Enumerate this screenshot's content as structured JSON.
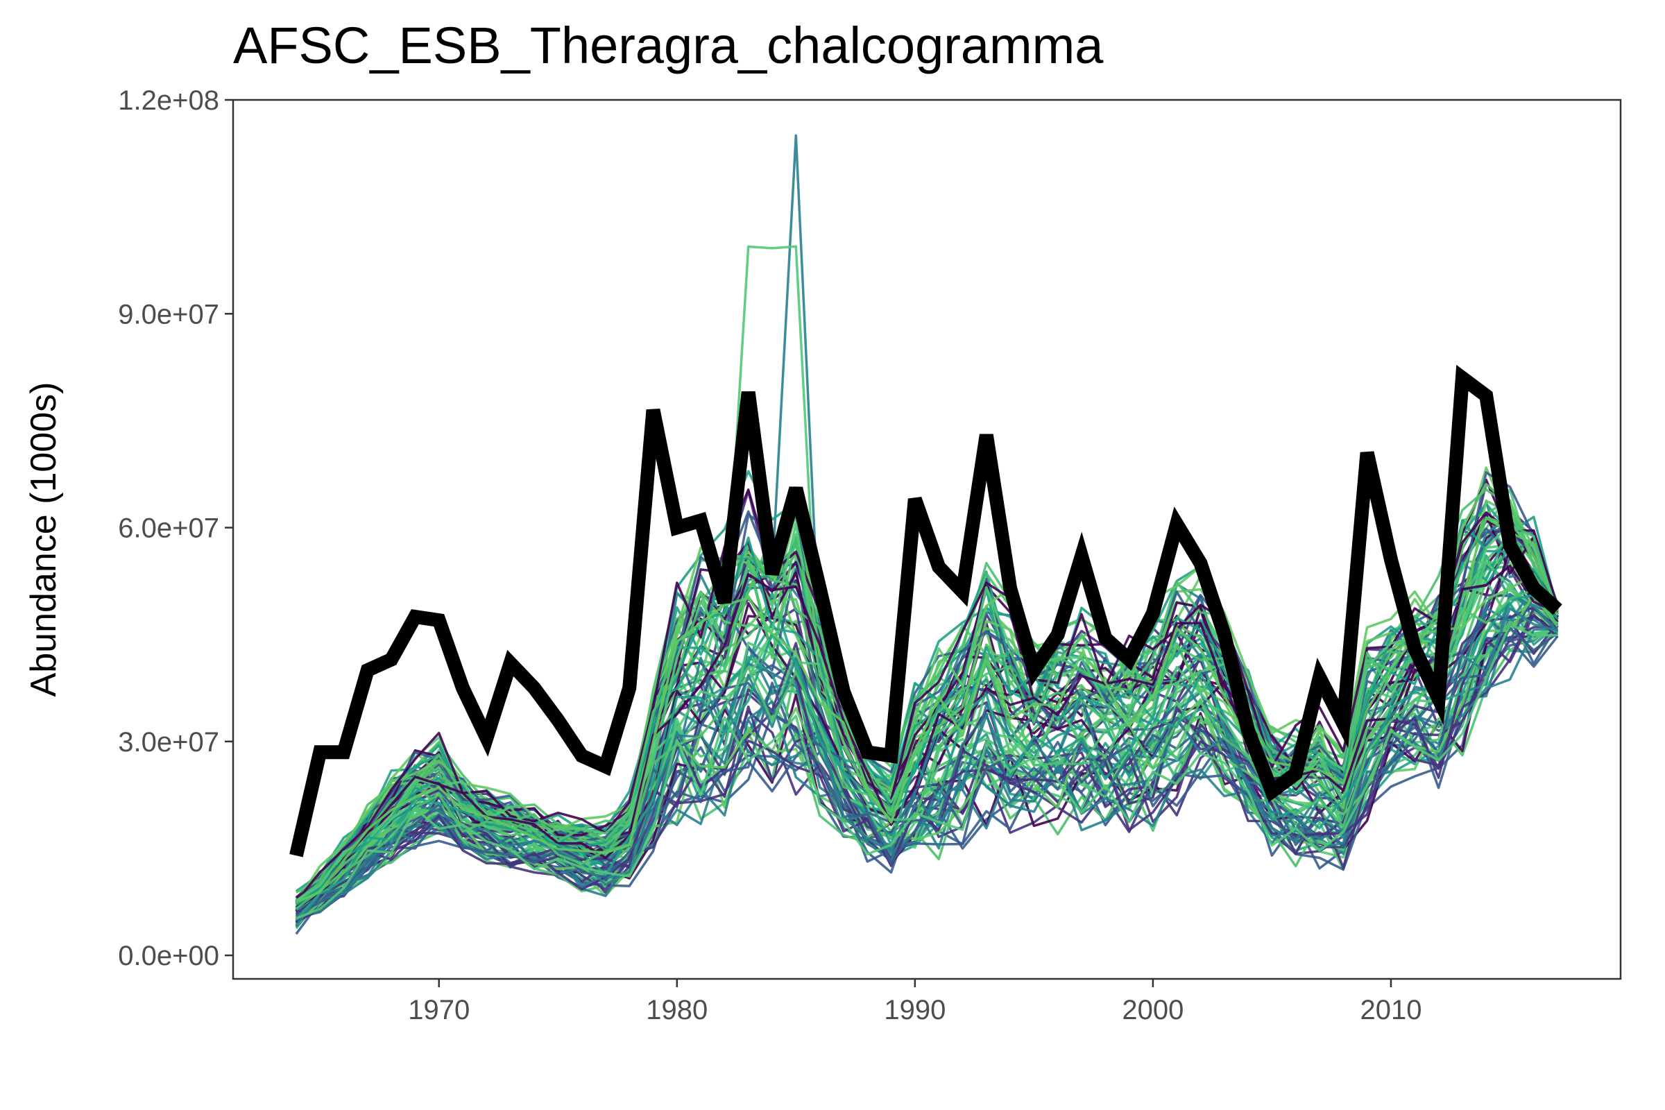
{
  "chart_data": {
    "type": "line",
    "title": "AFSC_ESB_Theragra_chalcogramma",
    "xlabel": "",
    "ylabel": "Abundance (1000s)",
    "xlim": [
      1964,
      2017
    ],
    "ylim": [
      0,
      120000000
    ],
    "x_ticks": [
      1970,
      1980,
      1990,
      2000,
      2010
    ],
    "x_tick_labels": [
      "1970",
      "1980",
      "1990",
      "2000",
      "2010"
    ],
    "y_ticks": [
      0,
      30000000,
      60000000,
      90000000,
      120000000
    ],
    "y_tick_labels": [
      "0.0e+00",
      "3.0e+07",
      "6.0e+07",
      "9.0e+07",
      "1.2e+08"
    ],
    "grid": false,
    "legend": "none",
    "x": [
      1964,
      1965,
      1966,
      1967,
      1968,
      1969,
      1970,
      1971,
      1972,
      1973,
      1974,
      1975,
      1976,
      1977,
      1978,
      1979,
      1980,
      1981,
      1982,
      1983,
      1984,
      1985,
      1986,
      1987,
      1988,
      1989,
      1990,
      1991,
      1992,
      1993,
      1994,
      1995,
      1996,
      1997,
      1998,
      1999,
      2000,
      2001,
      2002,
      2003,
      2004,
      2005,
      2006,
      2007,
      2008,
      2009,
      2010,
      2011,
      2012,
      2013,
      2014,
      2015,
      2016,
      2017
    ],
    "observed": {
      "color": "#000000",
      "values": [
        14000000,
        28500000,
        28500000,
        40000000,
        41500000,
        47500000,
        47000000,
        37500000,
        30500000,
        41000000,
        37500000,
        33000000,
        28000000,
        26500000,
        37500000,
        76500000,
        60000000,
        61000000,
        49500000,
        79000000,
        53500000,
        65500000,
        51500000,
        37000000,
        28500000,
        28000000,
        64000000,
        54500000,
        51000000,
        73000000,
        51500000,
        40000000,
        45000000,
        56000000,
        44500000,
        41500000,
        48000000,
        60500000,
        55000000,
        45000000,
        31500000,
        23000000,
        25500000,
        39000000,
        32500000,
        70500000,
        55500000,
        43000000,
        36000000,
        81000000,
        78500000,
        57500000,
        51500000,
        48500000
      ]
    },
    "ensemble": {
      "count": 80,
      "palette": [
        "#440154",
        "#46327e",
        "#365c8d",
        "#277f8e",
        "#1fa187",
        "#4ac16d",
        "#5ec962",
        "#50c878"
      ],
      "low": [
        3000000,
        5500000,
        8000000,
        10500000,
        13000000,
        15000000,
        15500000,
        14000000,
        12500000,
        12000000,
        11500000,
        10500000,
        9000000,
        8000000,
        9500000,
        14000000,
        17000000,
        18000000,
        19000000,
        22000000,
        21000000,
        21500000,
        19500000,
        16500000,
        13000000,
        11500000,
        12000000,
        13500000,
        15000000,
        16000000,
        16500000,
        16500000,
        17000000,
        17500000,
        17500000,
        17000000,
        17500000,
        19500000,
        21000000,
        21500000,
        18500000,
        14000000,
        12500000,
        12000000,
        11000000,
        18000000,
        22500000,
        24000000,
        23500000,
        27000000,
        33500000,
        38500000,
        40500000,
        44500000
      ],
      "high": [
        9000000,
        12500000,
        16500000,
        21500000,
        26000000,
        30000000,
        31500000,
        26500000,
        23500000,
        23000000,
        21500000,
        20500000,
        19500000,
        19500000,
        23000000,
        40000000,
        54000000,
        58000000,
        60000000,
        70000000,
        65000000,
        68000000,
        52000000,
        40000000,
        30000000,
        27000000,
        40000000,
        45000000,
        48000000,
        58000000,
        52000000,
        46000000,
        48000000,
        50000000,
        47000000,
        46000000,
        50000000,
        56000000,
        55000000,
        49000000,
        40000000,
        33000000,
        33000000,
        35000000,
        30000000,
        46000000,
        48000000,
        52000000,
        54000000,
        64000000,
        70000000,
        68000000,
        62000000,
        50000000
      ],
      "peak_1985": 115000000
    }
  }
}
